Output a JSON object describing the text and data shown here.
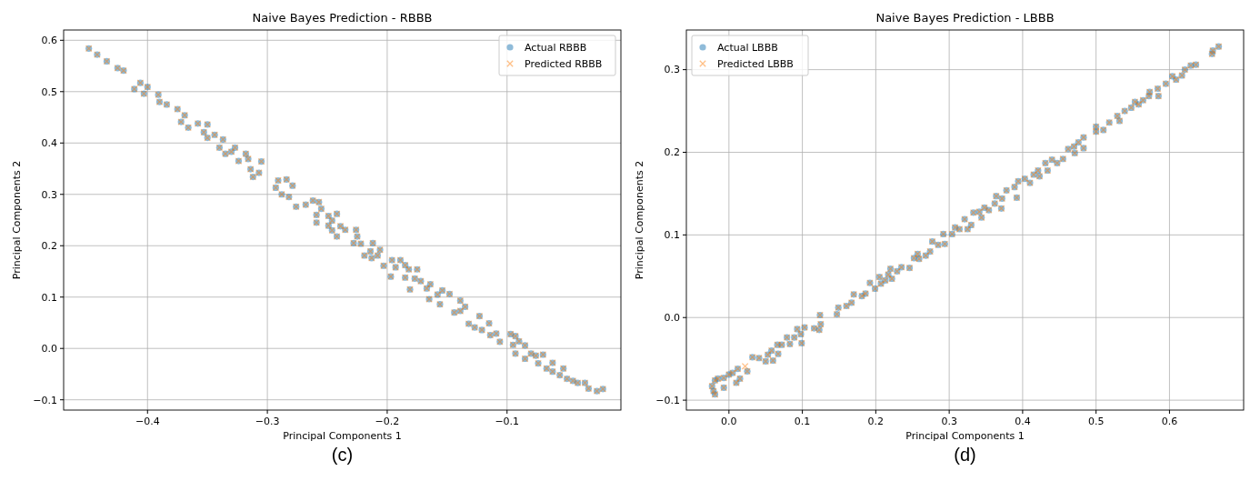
{
  "chart_data": [
    {
      "type": "scatter",
      "title": "Naive Bayes Prediction - RBBB",
      "xlabel": "Principal Components 1",
      "ylabel": "Principal Components 2",
      "annotations": [
        "(c)"
      ],
      "grid": true,
      "legend": "top right",
      "xlim": [
        -0.47,
        -0.005
      ],
      "ylim": [
        -0.12,
        0.62
      ],
      "xticks": [
        {
          "value": -0.4,
          "label": "−0.4"
        },
        {
          "value": -0.3,
          "label": "−0.3"
        },
        {
          "value": -0.2,
          "label": "−0.2"
        },
        {
          "value": -0.1,
          "label": "−0.1"
        }
      ],
      "yticks": [
        {
          "value": -0.1,
          "label": "−0.1"
        },
        {
          "value": 0,
          "label": "0.0"
        },
        {
          "value": 0.1,
          "label": "0.1"
        },
        {
          "value": 0.2,
          "label": "0.2"
        },
        {
          "value": 0.3,
          "label": "0.3"
        },
        {
          "value": 0.4,
          "label": "0.4"
        },
        {
          "value": 0.5,
          "label": "0.5"
        },
        {
          "value": 0.6,
          "label": "0.6"
        }
      ],
      "series": [
        {
          "name": "Actual RBBB",
          "color": "#1f77b4",
          "marker": "circle",
          "x": [
            -0.449,
            -0.442,
            -0.434,
            -0.425,
            -0.42,
            -0.411,
            -0.406,
            -0.403,
            -0.4,
            -0.391,
            -0.39,
            -0.384,
            -0.375,
            -0.372,
            -0.369,
            -0.366,
            -0.358,
            -0.353,
            -0.35,
            -0.35,
            -0.344,
            -0.337,
            -0.34,
            -0.335,
            -0.33,
            -0.327,
            -0.324,
            -0.318,
            -0.316,
            -0.314,
            -0.312,
            -0.307,
            -0.305,
            -0.293,
            -0.291,
            -0.284,
            -0.288,
            -0.282,
            -0.279,
            -0.276,
            -0.268,
            -0.262,
            -0.257,
            -0.255,
            -0.259,
            -0.259,
            -0.249,
            -0.246,
            -0.242,
            -0.249,
            -0.246,
            -0.239,
            -0.235,
            -0.242,
            -0.226,
            -0.225,
            -0.228,
            -0.222,
            -0.212,
            -0.219,
            -0.214,
            -0.213,
            -0.206,
            -0.208,
            -0.203,
            -0.196,
            -0.197,
            -0.189,
            -0.193,
            -0.185,
            -0.182,
            -0.185,
            -0.181,
            -0.175,
            -0.177,
            -0.172,
            -0.167,
            -0.164,
            -0.165,
            -0.158,
            -0.156,
            -0.154,
            -0.148,
            -0.144,
            -0.139,
            -0.139,
            -0.135,
            -0.132,
            -0.127,
            -0.123,
            -0.121,
            -0.115,
            -0.114,
            -0.109,
            -0.106,
            -0.097,
            -0.093,
            -0.095,
            -0.093,
            -0.09,
            -0.085,
            -0.085,
            -0.08,
            -0.076,
            -0.074,
            -0.07,
            -0.067,
            -0.062,
            -0.062,
            -0.056,
            -0.053,
            -0.05,
            -0.045,
            -0.041,
            -0.035,
            -0.032,
            -0.025,
            -0.02
          ],
          "values": [
            0.584,
            0.572,
            0.559,
            0.546,
            0.541,
            0.505,
            0.517,
            0.496,
            0.509,
            0.494,
            0.48,
            0.475,
            0.466,
            0.441,
            0.454,
            0.43,
            0.438,
            0.421,
            0.436,
            0.41,
            0.416,
            0.407,
            0.391,
            0.379,
            0.383,
            0.391,
            0.365,
            0.379,
            0.369,
            0.349,
            0.334,
            0.342,
            0.364,
            0.313,
            0.327,
            0.329,
            0.3,
            0.295,
            0.317,
            0.276,
            0.28,
            0.288,
            0.285,
            0.272,
            0.26,
            0.245,
            0.258,
            0.249,
            0.262,
            0.239,
            0.23,
            0.238,
            0.231,
            0.218,
            0.231,
            0.218,
            0.205,
            0.204,
            0.205,
            0.181,
            0.189,
            0.176,
            0.192,
            0.181,
            0.161,
            0.172,
            0.14,
            0.172,
            0.158,
            0.162,
            0.154,
            0.138,
            0.115,
            0.154,
            0.136,
            0.131,
            0.117,
            0.125,
            0.096,
            0.105,
            0.086,
            0.113,
            0.106,
            0.07,
            0.093,
            0.073,
            0.081,
            0.048,
            0.041,
            0.063,
            0.036,
            0.049,
            0.026,
            0.029,
            0.013,
            0.028,
            0.024,
            0.007,
            -0.01,
            0.014,
            0.006,
            -0.02,
            -0.01,
            -0.014,
            -0.029,
            -0.012,
            -0.039,
            -0.045,
            -0.028,
            -0.052,
            -0.039,
            -0.059,
            -0.063,
            -0.067,
            -0.067,
            -0.078,
            -0.083,
            -0.079
          ]
        },
        {
          "name": "Predicted RBBB",
          "color": "#ff7f0e",
          "marker": "cross",
          "x": [
            -0.449,
            -0.442,
            -0.434,
            -0.425,
            -0.42,
            -0.411,
            -0.406,
            -0.403,
            -0.4,
            -0.391,
            -0.39,
            -0.384,
            -0.375,
            -0.372,
            -0.369,
            -0.366,
            -0.358,
            -0.353,
            -0.35,
            -0.35,
            -0.344,
            -0.337,
            -0.34,
            -0.335,
            -0.33,
            -0.327,
            -0.324,
            -0.318,
            -0.316,
            -0.314,
            -0.312,
            -0.307,
            -0.305,
            -0.293,
            -0.291,
            -0.284,
            -0.288,
            -0.282,
            -0.279,
            -0.276,
            -0.268,
            -0.262,
            -0.257,
            -0.255,
            -0.259,
            -0.259,
            -0.249,
            -0.246,
            -0.242,
            -0.249,
            -0.246,
            -0.239,
            -0.235,
            -0.242,
            -0.226,
            -0.225,
            -0.228,
            -0.222,
            -0.212,
            -0.219,
            -0.214,
            -0.213,
            -0.206,
            -0.208,
            -0.203,
            -0.196,
            -0.197,
            -0.189,
            -0.193,
            -0.185,
            -0.182,
            -0.185,
            -0.181,
            -0.175,
            -0.177,
            -0.172,
            -0.167,
            -0.164,
            -0.165,
            -0.158,
            -0.156,
            -0.154,
            -0.148,
            -0.144,
            -0.139,
            -0.139,
            -0.135,
            -0.132,
            -0.127,
            -0.123,
            -0.121,
            -0.115,
            -0.114,
            -0.109,
            -0.106,
            -0.097,
            -0.093,
            -0.095,
            -0.093,
            -0.09,
            -0.085,
            -0.085,
            -0.08,
            -0.076,
            -0.074,
            -0.07,
            -0.067,
            -0.062,
            -0.062,
            -0.056,
            -0.053,
            -0.05,
            -0.045,
            -0.041,
            -0.035,
            -0.032,
            -0.025,
            -0.02
          ],
          "values": [
            0.584,
            0.572,
            0.559,
            0.546,
            0.541,
            0.505,
            0.517,
            0.496,
            0.509,
            0.494,
            0.48,
            0.475,
            0.466,
            0.441,
            0.454,
            0.43,
            0.438,
            0.421,
            0.436,
            0.41,
            0.416,
            0.407,
            0.391,
            0.379,
            0.383,
            0.391,
            0.365,
            0.379,
            0.369,
            0.349,
            0.334,
            0.342,
            0.364,
            0.313,
            0.327,
            0.329,
            0.3,
            0.295,
            0.317,
            0.276,
            0.28,
            0.288,
            0.285,
            0.272,
            0.26,
            0.245,
            0.258,
            0.249,
            0.262,
            0.239,
            0.23,
            0.238,
            0.231,
            0.218,
            0.231,
            0.218,
            0.205,
            0.204,
            0.205,
            0.181,
            0.189,
            0.176,
            0.192,
            0.181,
            0.161,
            0.172,
            0.14,
            0.172,
            0.158,
            0.162,
            0.154,
            0.138,
            0.115,
            0.154,
            0.136,
            0.131,
            0.117,
            0.125,
            0.096,
            0.105,
            0.086,
            0.113,
            0.106,
            0.07,
            0.093,
            0.073,
            0.081,
            0.048,
            0.041,
            0.063,
            0.036,
            0.049,
            0.026,
            0.029,
            0.013,
            0.028,
            0.024,
            0.007,
            -0.01,
            0.014,
            0.006,
            -0.02,
            -0.01,
            -0.014,
            -0.029,
            -0.012,
            -0.039,
            -0.045,
            -0.028,
            -0.052,
            -0.039,
            -0.059,
            -0.063,
            -0.067,
            -0.067,
            -0.078,
            -0.083,
            -0.079
          ]
        }
      ]
    },
    {
      "type": "scatter",
      "title": "Naive Bayes Prediction - LBBB",
      "xlabel": "Principal Components 1",
      "ylabel": "Principal Components 2",
      "annotations": [
        "(d)"
      ],
      "grid": true,
      "legend": "top left",
      "xlim": [
        -0.058,
        0.701
      ],
      "ylim": [
        -0.112,
        0.348
      ],
      "xticks": [
        {
          "value": 0,
          "label": "0.0"
        },
        {
          "value": 0.1,
          "label": "0.1"
        },
        {
          "value": 0.2,
          "label": "0.2"
        },
        {
          "value": 0.3,
          "label": "0.3"
        },
        {
          "value": 0.4,
          "label": "0.4"
        },
        {
          "value": 0.5,
          "label": "0.5"
        },
        {
          "value": 0.6,
          "label": "0.6"
        }
      ],
      "yticks": [
        {
          "value": -0.1,
          "label": "−0.1"
        },
        {
          "value": 0,
          "label": "0.0"
        },
        {
          "value": 0.1,
          "label": "0.1"
        },
        {
          "value": 0.2,
          "label": "0.2"
        },
        {
          "value": 0.3,
          "label": "0.3"
        }
      ],
      "series": [
        {
          "name": "Actual LBBB",
          "color": "#1f77b4",
          "marker": "circle",
          "x": [
            -0.023,
            -0.021,
            -0.019,
            -0.015,
            -0.019,
            -0.007,
            -0.007,
            0,
            0.005,
            0.012,
            0.01,
            0.015,
            0.025,
            0.032,
            0.041,
            0.05,
            0.053,
            0.06,
            0.058,
            0.067,
            0.066,
            0.072,
            0.079,
            0.083,
            0.089,
            0.093,
            0.098,
            0.099,
            0.103,
            0.116,
            0.123,
            0.124,
            0.125,
            0.147,
            0.149,
            0.16,
            0.167,
            0.17,
            0.181,
            0.186,
            0.192,
            0.199,
            0.205,
            0.207,
            0.213,
            0.217,
            0.22,
            0.222,
            0.229,
            0.235,
            0.246,
            0.252,
            0.257,
            0.259,
            0.268,
            0.274,
            0.277,
            0.285,
            0.294,
            0.292,
            0.304,
            0.308,
            0.314,
            0.321,
            0.325,
            0.33,
            0.333,
            0.341,
            0.344,
            0.348,
            0.354,
            0.362,
            0.364,
            0.371,
            0.372,
            0.378,
            0.389,
            0.392,
            0.394,
            0.403,
            0.41,
            0.415,
            0.421,
            0.423,
            0.431,
            0.434,
            0.44,
            0.447,
            0.455,
            0.462,
            0.47,
            0.471,
            0.476,
            0.483,
            0.483,
            0.5,
            0.5,
            0.51,
            0.518,
            0.529,
            0.532,
            0.539,
            0.548,
            0.553,
            0.558,
            0.564,
            0.573,
            0.572,
            0.584,
            0.585,
            0.595,
            0.604,
            0.609,
            0.617,
            0.621,
            0.629,
            0.636,
            0.658,
            0.659,
            0.667
          ],
          "values": [
            -0.083,
            -0.089,
            -0.076,
            -0.074,
            -0.093,
            -0.073,
            -0.085,
            -0.069,
            -0.067,
            -0.062,
            -0.079,
            -0.074,
            -0.065,
            -0.048,
            -0.049,
            -0.053,
            -0.045,
            -0.052,
            -0.04,
            -0.044,
            -0.033,
            -0.033,
            -0.024,
            -0.032,
            -0.024,
            -0.014,
            -0.02,
            -0.031,
            -0.012,
            -0.013,
            -0.015,
            0.003,
            -0.008,
            0.004,
            0.012,
            0.014,
            0.018,
            0.028,
            0.026,
            0.029,
            0.042,
            0.035,
            0.049,
            0.041,
            0.045,
            0.052,
            0.059,
            0.047,
            0.056,
            0.061,
            0.06,
            0.072,
            0.077,
            0.071,
            0.075,
            0.08,
            0.092,
            0.088,
            0.089,
            0.101,
            0.101,
            0.109,
            0.107,
            0.119,
            0.107,
            0.112,
            0.127,
            0.128,
            0.121,
            0.133,
            0.13,
            0.138,
            0.147,
            0.132,
            0.144,
            0.154,
            0.158,
            0.145,
            0.165,
            0.168,
            0.163,
            0.173,
            0.178,
            0.171,
            0.187,
            0.178,
            0.191,
            0.187,
            0.192,
            0.204,
            0.207,
            0.199,
            0.212,
            0.218,
            0.205,
            0.225,
            0.231,
            0.227,
            0.236,
            0.244,
            0.238,
            0.25,
            0.254,
            0.261,
            0.258,
            0.263,
            0.273,
            0.268,
            0.277,
            0.268,
            0.283,
            0.292,
            0.288,
            0.293,
            0.3,
            0.305,
            0.306,
            0.319,
            0.323,
            0.328
          ]
        },
        {
          "name": "Predicted LBBB",
          "color": "#ff7f0e",
          "marker": "cross",
          "x": [
            -0.023,
            -0.021,
            -0.019,
            -0.015,
            -0.019,
            -0.007,
            -0.007,
            0,
            0.005,
            0.012,
            0.01,
            0.015,
            0.022,
            0.025,
            0.032,
            0.041,
            0.05,
            0.053,
            0.06,
            0.058,
            0.067,
            0.066,
            0.072,
            0.079,
            0.083,
            0.089,
            0.093,
            0.098,
            0.099,
            0.103,
            0.116,
            0.123,
            0.124,
            0.125,
            0.147,
            0.149,
            0.16,
            0.167,
            0.17,
            0.181,
            0.186,
            0.192,
            0.199,
            0.205,
            0.207,
            0.213,
            0.217,
            0.22,
            0.222,
            0.229,
            0.235,
            0.246,
            0.252,
            0.257,
            0.259,
            0.268,
            0.274,
            0.277,
            0.285,
            0.294,
            0.292,
            0.304,
            0.308,
            0.314,
            0.321,
            0.325,
            0.33,
            0.333,
            0.341,
            0.344,
            0.348,
            0.354,
            0.362,
            0.364,
            0.371,
            0.372,
            0.378,
            0.389,
            0.392,
            0.394,
            0.403,
            0.41,
            0.415,
            0.421,
            0.423,
            0.431,
            0.434,
            0.44,
            0.447,
            0.455,
            0.462,
            0.47,
            0.471,
            0.476,
            0.483,
            0.483,
            0.5,
            0.5,
            0.51,
            0.518,
            0.529,
            0.532,
            0.539,
            0.548,
            0.553,
            0.558,
            0.564,
            0.573,
            0.572,
            0.584,
            0.585,
            0.595,
            0.604,
            0.609,
            0.617,
            0.621,
            0.629,
            0.636,
            0.658,
            0.659,
            0.667
          ],
          "values": [
            -0.083,
            -0.089,
            -0.076,
            -0.074,
            -0.093,
            -0.073,
            -0.085,
            -0.069,
            -0.067,
            -0.062,
            -0.079,
            -0.074,
            -0.059,
            -0.065,
            -0.048,
            -0.049,
            -0.053,
            -0.045,
            -0.052,
            -0.04,
            -0.044,
            -0.033,
            -0.033,
            -0.024,
            -0.032,
            -0.024,
            -0.014,
            -0.02,
            -0.031,
            -0.012,
            -0.013,
            -0.015,
            0.003,
            -0.008,
            0.004,
            0.012,
            0.014,
            0.018,
            0.028,
            0.026,
            0.029,
            0.042,
            0.035,
            0.049,
            0.041,
            0.045,
            0.052,
            0.059,
            0.047,
            0.056,
            0.061,
            0.06,
            0.072,
            0.077,
            0.071,
            0.075,
            0.08,
            0.092,
            0.088,
            0.089,
            0.101,
            0.101,
            0.109,
            0.107,
            0.119,
            0.107,
            0.112,
            0.127,
            0.128,
            0.121,
            0.133,
            0.13,
            0.138,
            0.147,
            0.132,
            0.144,
            0.154,
            0.158,
            0.145,
            0.165,
            0.168,
            0.163,
            0.173,
            0.178,
            0.171,
            0.187,
            0.178,
            0.191,
            0.187,
            0.192,
            0.204,
            0.207,
            0.199,
            0.212,
            0.218,
            0.205,
            0.225,
            0.231,
            0.227,
            0.236,
            0.244,
            0.238,
            0.25,
            0.254,
            0.261,
            0.258,
            0.263,
            0.273,
            0.268,
            0.277,
            0.268,
            0.283,
            0.292,
            0.288,
            0.293,
            0.3,
            0.305,
            0.306,
            0.319,
            0.323,
            0.328
          ]
        }
      ]
    }
  ]
}
